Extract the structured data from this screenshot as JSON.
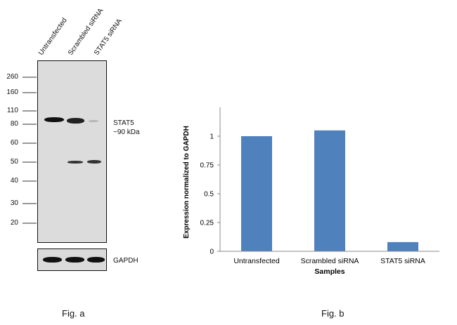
{
  "fig_a": {
    "caption": "Fig. a",
    "lanes": [
      "Untransfected",
      "Scrambled siRNA",
      "STAT5 siRNA"
    ],
    "mw_markers": [
      "260",
      "160",
      "110",
      "80",
      "60",
      "50",
      "40",
      "30",
      "20"
    ],
    "target_label_line1": "STAT5",
    "target_label_line2": "~90 kDa",
    "loading_control_label": "GAPDH"
  },
  "fig_b": {
    "caption": "Fig. b"
  },
  "chart_data": {
    "type": "bar",
    "categories": [
      "Untransfected",
      "Scrambled siRNA",
      "STAT5 siRNA"
    ],
    "values": [
      1.0,
      1.05,
      0.08
    ],
    "title": "",
    "xlabel": "Samples",
    "ylabel": "Expression normalized to GAPDH",
    "ylim": [
      0,
      1.25
    ],
    "yticks": [
      0,
      0.25,
      0.5,
      0.75,
      1
    ],
    "ytick_labels": [
      "0",
      "0.25",
      "0.5",
      "0.75",
      "1"
    ],
    "bar_color": "#4f81bd",
    "grid": false,
    "legend": "none"
  }
}
